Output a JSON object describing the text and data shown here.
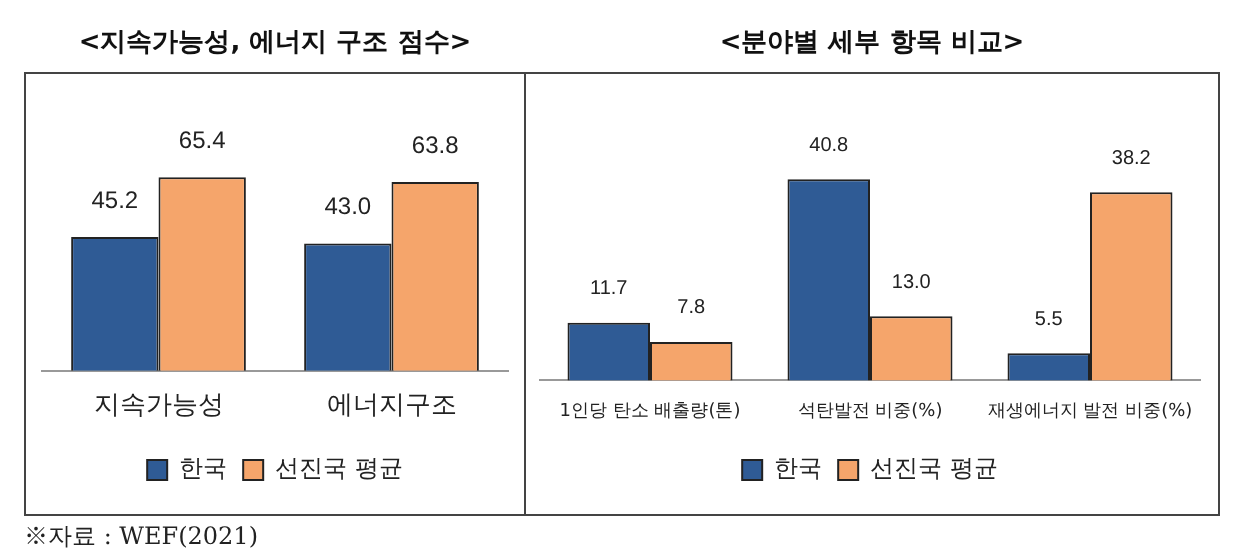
{
  "chart_data": [
    {
      "type": "bar",
      "title": "<지속가능성, 에너지 구조 점수>",
      "categories": [
        "지속가능성",
        "에너지구조"
      ],
      "series": [
        {
          "name": "한국",
          "color": "#2f5b95",
          "values": [
            45.2,
            43.0
          ],
          "value_labels": [
            "45.2",
            "43.0"
          ]
        },
        {
          "name": "선진국 평균",
          "color": "#f5a56b",
          "values": [
            65.4,
            63.8
          ],
          "value_labels": [
            "65.4",
            "63.8"
          ]
        }
      ],
      "tick_labels": "x",
      "legend": "bottom",
      "annotations": [
        "※자료 : WEF(2021)"
      ]
    },
    {
      "type": "bar",
      "title": "<분야별 세부 항목 비교>",
      "categories": [
        "1인당 탄소 배출량(톤)",
        "석탄발전 비중(%)",
        "재생에너지 발전 비중(%)"
      ],
      "series": [
        {
          "name": "한국",
          "color": "#2f5b95",
          "values": [
            11.7,
            40.8,
            5.5
          ],
          "value_labels": [
            "11.7",
            "40.8",
            "5.5"
          ]
        },
        {
          "name": "선진국 평균",
          "color": "#f5a56b",
          "values": [
            7.8,
            13.0,
            38.2
          ],
          "value_labels": [
            "7.8",
            "13.0",
            "38.2"
          ]
        }
      ],
      "tick_labels": "x",
      "legend": "bottom"
    }
  ]
}
